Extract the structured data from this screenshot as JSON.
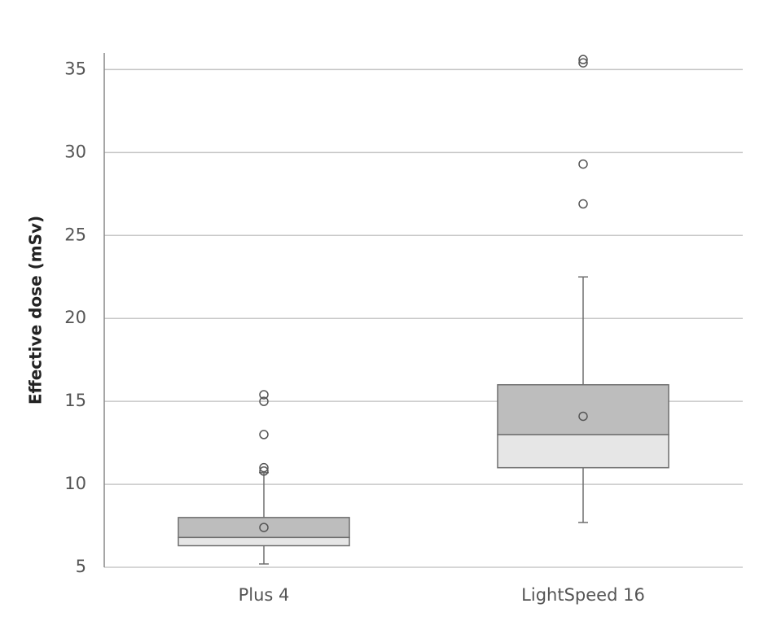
{
  "chart_data": {
    "type": "box",
    "y_label": "Effective dose (mSv)",
    "categories": [
      "Plus 4",
      "LightSpeed 16"
    ],
    "boxes": [
      {
        "whisker_low": 5.2,
        "q1": 6.3,
        "median": 6.8,
        "q3": 8.0,
        "whisker_high": 10.7,
        "mean": 7.4,
        "outliers": [
          10.8,
          11.0,
          13.0,
          15.0,
          15.4
        ]
      },
      {
        "whisker_low": 7.7,
        "q1": 11.0,
        "median": 13.0,
        "q3": 16.0,
        "whisker_high": 22.5,
        "mean": 14.1,
        "outliers": [
          26.9,
          29.3,
          35.4,
          35.6
        ]
      }
    ],
    "lower_color": "#e6e6e6",
    "upper_color": "#bdbdbd",
    "line_color": "#6e6e6e",
    "ylim": [
      5,
      36
    ],
    "yticks": [
      5,
      10,
      15,
      20,
      25,
      30,
      35
    ],
    "grid": true
  }
}
